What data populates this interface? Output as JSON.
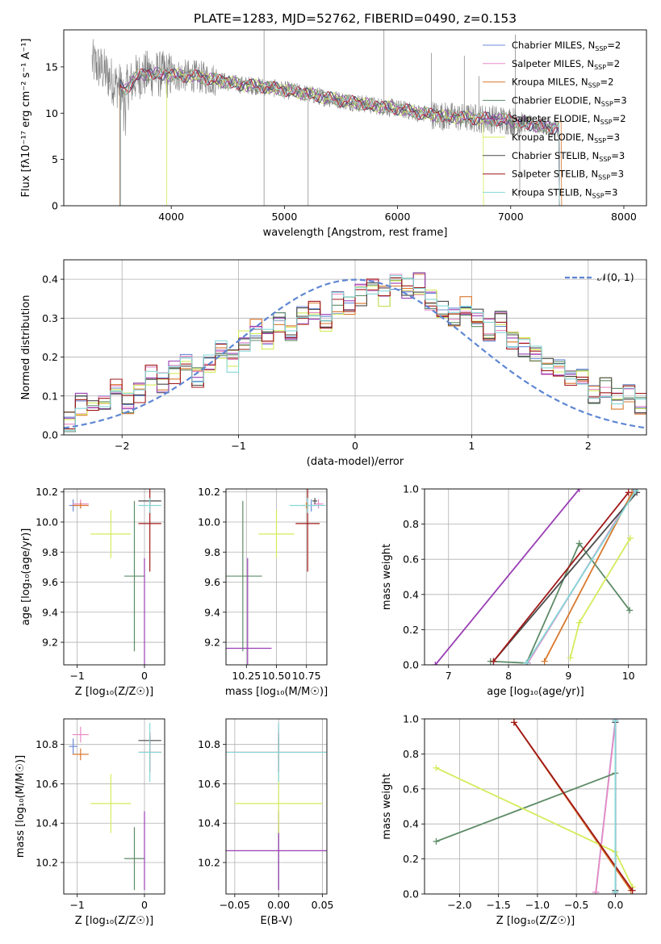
{
  "figure": {
    "title": "PLATE=1283, MJD=52762, FIBERID=0490, z=0.153",
    "models": [
      {
        "name": "Chabrier MILES",
        "nssp": "2",
        "color": "#6b8bd6"
      },
      {
        "name": "Salpeter MILES",
        "nssp": "2",
        "color": "#e98bc6"
      },
      {
        "name": "Kroupa MILES",
        "nssp": "2",
        "color": "#d9782d"
      },
      {
        "name": "Chabrier ELODIE",
        "nssp": "3",
        "color": "#5e8c68"
      },
      {
        "name": "Salpeter ELODIE",
        "nssp": "2",
        "color": "#9a3fb4"
      },
      {
        "name": "Kroupa ELODIE",
        "nssp": "3",
        "color": "#d4ec5c"
      },
      {
        "name": "Chabrier STELIB",
        "nssp": "3",
        "color": "#4a4a4a"
      },
      {
        "name": "Salpeter STELIB",
        "nssp": "3",
        "color": "#a01818"
      },
      {
        "name": "Kroupa STELIB",
        "nssp": "3",
        "color": "#86d8d8"
      }
    ]
  },
  "chart_data": [
    {
      "id": "spectrum",
      "type": "line",
      "xlabel": "wavelength [Angstrom, rest frame]",
      "ylabel": "Flux [fλ10⁻¹⁷ erg cm⁻² s⁻¹ A⁻¹]",
      "xlim": [
        3050,
        8200
      ],
      "ylim": [
        0,
        19
      ],
      "xticks": [
        "4000",
        "5000",
        "6000",
        "7000",
        "8000"
      ],
      "yticks": [
        "0",
        "5",
        "10",
        "15"
      ],
      "grid": false,
      "legend": "top-right",
      "data_color": "#7f7f7f",
      "continuum": {
        "x": [
          3300,
          3400,
          3500,
          3600,
          3700,
          3800,
          3900,
          4000,
          4200,
          4400,
          4600,
          4800,
          5000,
          5200,
          5400,
          5600,
          5800,
          6000,
          6200,
          6400,
          6600,
          6800,
          7000,
          7200,
          7400
        ],
        "y": [
          15.5,
          14.6,
          13.2,
          12.6,
          14.0,
          14.3,
          14.2,
          14.1,
          14.0,
          13.6,
          13.1,
          12.9,
          12.5,
          12.1,
          11.6,
          11.2,
          10.8,
          10.5,
          10.0,
          9.7,
          9.5,
          9.4,
          9.2,
          8.7,
          8.4
        ]
      },
      "spikes_up": [
        {
          "x": 4820,
          "y": 19
        },
        {
          "x": 5880,
          "y": 19
        },
        {
          "x": 6300,
          "y": 16.5
        },
        {
          "x": 6590,
          "y": 16.2
        },
        {
          "x": 7040,
          "y": 18.5
        },
        {
          "x": 6720,
          "y": 14.0
        }
      ],
      "spikes_down": [
        {
          "x": 4820,
          "y": 0
        },
        {
          "x": 5210,
          "y": 0
        },
        {
          "x": 7080,
          "y": 0.8
        }
      ],
      "model_cutoffs": [
        {
          "model": "Kroupa MILES",
          "x_start": 3545,
          "x_end": 7450
        },
        {
          "model": "Kroupa ELODIE",
          "x_start": 3960,
          "x_end": 6760
        }
      ]
    },
    {
      "id": "residuals",
      "type": "line",
      "xlabel": "(data-model)/error",
      "ylabel": "Normed distribution",
      "xlim": [
        -2.5,
        2.5
      ],
      "ylim": [
        0,
        0.45
      ],
      "xticks": [
        "−2",
        "−1",
        "0",
        "1",
        "2"
      ],
      "yticks": [
        "0.0",
        "0.1",
        "0.2",
        "0.3",
        "0.4"
      ],
      "grid": true,
      "legend": "top-right",
      "reference_label": "𝒩(0, 1)",
      "reference_color": "#5f87d3",
      "bins": {
        "start": -2.5,
        "width": 0.1,
        "count": 50
      },
      "base_hist": [
        0.03,
        0.08,
        0.06,
        0.09,
        0.12,
        0.08,
        0.11,
        0.15,
        0.13,
        0.16,
        0.19,
        0.15,
        0.18,
        0.22,
        0.19,
        0.24,
        0.27,
        0.25,
        0.29,
        0.27,
        0.3,
        0.32,
        0.29,
        0.34,
        0.33,
        0.36,
        0.38,
        0.36,
        0.4,
        0.38,
        0.39,
        0.35,
        0.33,
        0.31,
        0.33,
        0.3,
        0.27,
        0.29,
        0.25,
        0.23,
        0.21,
        0.17,
        0.18,
        0.14,
        0.15,
        0.11,
        0.12,
        0.09,
        0.1,
        0.08
      ]
    },
    {
      "id": "age-vs-z",
      "type": "scatter",
      "xlabel": "Z [log₁₀(Z/Z☉)]",
      "ylabel": "age  [log₁₀(age/yr)]",
      "xlim": [
        -1.2,
        0.3
      ],
      "ylim": [
        9.05,
        10.22
      ],
      "xticks": [
        "−1",
        "0"
      ],
      "yticks": [
        "9.2",
        "9.4",
        "9.6",
        "9.8",
        "10.0",
        "10.2"
      ],
      "grid": true
    },
    {
      "id": "age-vs-mass",
      "type": "scatter",
      "xlabel": "mass [log₁₀(M/M☉)]",
      "ylabel": "",
      "xlim": [
        10.08,
        10.92
      ],
      "ylim": [
        9.05,
        10.22
      ],
      "xticks": [
        "10.25",
        "10.50",
        "10.75"
      ],
      "yticks": [
        "9.2",
        "9.4",
        "9.6",
        "9.8",
        "10.0",
        "10.2"
      ],
      "grid": true
    },
    {
      "id": "weight-vs-age",
      "type": "line",
      "xlabel": "age  [log₁₀(age/yr)]",
      "ylabel": "mass weight",
      "xlim": [
        6.6,
        10.3
      ],
      "ylim": [
        0,
        1
      ],
      "xticks": [
        "7",
        "8",
        "9",
        "10"
      ],
      "yticks": [
        "0.0",
        "0.2",
        "0.4",
        "0.6",
        "0.8",
        "1.0"
      ],
      "grid": true,
      "series": [
        {
          "model": "Chabrier MILES",
          "x": [
            8.32,
            10.08
          ],
          "y": [
            0.01,
            0.98
          ]
        },
        {
          "model": "Salpeter MILES",
          "x": [
            8.32,
            10.1
          ],
          "y": [
            0.01,
            0.99
          ]
        },
        {
          "model": "Kroupa MILES",
          "x": [
            8.6,
            10.06
          ],
          "y": [
            0.02,
            0.98
          ]
        },
        {
          "model": "Chabrier ELODIE",
          "x": [
            7.7,
            8.3,
            9.18,
            10.02
          ],
          "y": [
            0.02,
            0.01,
            0.69,
            0.31
          ]
        },
        {
          "model": "Salpeter ELODIE",
          "x": [
            6.78,
            9.18
          ],
          "y": [
            0.0,
            1.0
          ]
        },
        {
          "model": "Kroupa ELODIE",
          "x": [
            9.03,
            9.18,
            10.03
          ],
          "y": [
            0.04,
            0.24,
            0.72
          ]
        },
        {
          "model": "Chabrier STELIB",
          "x": [
            7.75,
            10.14
          ],
          "y": [
            0.02,
            0.98
          ]
        },
        {
          "model": "Salpeter STELIB",
          "x": [
            7.75,
            10.0
          ],
          "y": [
            0.02,
            0.98
          ]
        },
        {
          "model": "Kroupa STELIB",
          "x": [
            8.3,
            10.12
          ],
          "y": [
            0.01,
            0.99
          ]
        }
      ]
    },
    {
      "id": "mass-vs-z",
      "type": "scatter",
      "xlabel": "Z [log₁₀(Z/Z☉)]",
      "ylabel": "mass [log₁₀(M/M☉)]",
      "xlim": [
        -1.2,
        0.3
      ],
      "ylim": [
        10.04,
        10.93
      ],
      "xticks": [
        "−1",
        "0"
      ],
      "yticks": [
        "10.2",
        "10.4",
        "10.6",
        "10.8"
      ],
      "grid": true
    },
    {
      "id": "mass-vs-ebv",
      "type": "scatter",
      "xlabel": "E(B-V)",
      "ylabel": "",
      "xlim": [
        -0.06,
        0.055
      ],
      "ylim": [
        10.04,
        10.93
      ],
      "xticks": [
        "−0.05",
        "0.00",
        "0.05"
      ],
      "yticks": [
        "10.2",
        "10.4",
        "10.6",
        "10.8"
      ],
      "grid": true
    },
    {
      "id": "weight-vs-z",
      "type": "line",
      "xlabel": "Z [log₁₀(Z/Z☉)]",
      "ylabel": "mass weight",
      "xlim": [
        -2.45,
        0.4
      ],
      "ylim": [
        0,
        1
      ],
      "xticks": [
        "−2.0",
        "−1.5",
        "−1.0",
        "−0.5",
        "0.0"
      ],
      "yticks": [
        "0.0",
        "0.2",
        "0.4",
        "0.6",
        "0.8",
        "1.0"
      ],
      "grid": true,
      "series": [
        {
          "model": "Chabrier MILES",
          "x": [
            -0.25,
            0.0
          ],
          "y": [
            0.01,
            0.99
          ]
        },
        {
          "model": "Salpeter MILES",
          "x": [
            -0.25,
            0.0
          ],
          "y": [
            0.01,
            0.98
          ]
        },
        {
          "model": "Kroupa MILES",
          "x": [
            -1.3,
            0.2
          ],
          "y": [
            0.98,
            0.02
          ]
        },
        {
          "model": "Chabrier ELODIE",
          "x": [
            -2.3,
            0.0,
            0.0
          ],
          "y": [
            0.3,
            0.69,
            0.01
          ]
        },
        {
          "model": "Salpeter ELODIE",
          "x": [
            0.0,
            0.0
          ],
          "y": [
            0.0,
            1.0
          ]
        },
        {
          "model": "Kroupa ELODIE",
          "x": [
            -2.3,
            0.0,
            0.22
          ],
          "y": [
            0.72,
            0.24,
            0.04
          ]
        },
        {
          "model": "Chabrier STELIB",
          "x": [
            0.0,
            0.0
          ],
          "y": [
            0.02,
            0.98
          ]
        },
        {
          "model": "Salpeter STELIB",
          "x": [
            -1.3,
            0.22
          ],
          "y": [
            0.98,
            0.02
          ]
        },
        {
          "model": "Kroupa STELIB",
          "x": [
            0.0,
            0.0
          ],
          "y": [
            0.01,
            0.99
          ]
        }
      ]
    }
  ],
  "fits": [
    {
      "model": "Chabrier MILES",
      "z": -1.06,
      "z_err": 0.06,
      "age": 10.11,
      "age_err": 0.04,
      "mass": 10.79,
      "mass_err": 0.04,
      "ebv": 0.0,
      "ebv_err": 0.0
    },
    {
      "model": "Salpeter MILES",
      "z": -0.95,
      "z_err": 0.12,
      "age": 10.12,
      "age_err": 0.03,
      "mass": 10.85,
      "mass_err": 0.04,
      "ebv": 0.0,
      "ebv_err": 0.0
    },
    {
      "model": "Kroupa MILES",
      "z": -0.95,
      "z_err": 0.12,
      "age": 10.11,
      "age_err": 0.02,
      "mass": 10.75,
      "mass_err": 0.03,
      "ebv": 0.0,
      "ebv_err": 0.0
    },
    {
      "model": "Chabrier ELODIE",
      "z": -0.15,
      "z_err": 0.15,
      "age": 9.64,
      "age_err": 0.5,
      "mass": 10.22,
      "mass_err": 0.16,
      "ebv": 0.0,
      "ebv_err": 0.0
    },
    {
      "model": "Salpeter ELODIE",
      "z": 0.0,
      "z_err": 0.0,
      "age": 9.16,
      "age_err": 0.6,
      "mass": 10.26,
      "mass_err": 0.2,
      "ebv": 0.0,
      "ebv_err": 0.12
    },
    {
      "model": "Kroupa ELODIE",
      "z": -0.5,
      "z_err": 0.3,
      "age": 9.92,
      "age_err": 0.16,
      "mass": 10.5,
      "mass_err": 0.15,
      "ebv": 0.0,
      "ebv_err": 0.05
    },
    {
      "model": "Chabrier STELIB",
      "z": 0.08,
      "z_err": 0.17,
      "age": 10.14,
      "age_err": 0.02,
      "mass": 10.82,
      "mass_err": 0.02,
      "ebv": 0.0,
      "ebv_err": 0.0
    },
    {
      "model": "Salpeter STELIB",
      "z": 0.08,
      "z_err": 0.17,
      "age": 9.99,
      "age_err": 0.32,
      "mass": 10.76,
      "mass_err": 0.1,
      "ebv": 0.0,
      "ebv_err": 0.1
    },
    {
      "model": "Kroupa STELIB",
      "z": 0.08,
      "z_err": 0.17,
      "age": 10.11,
      "age_err": 0.05,
      "mass": 10.76,
      "mass_err": 0.15,
      "ebv": 0.0,
      "ebv_err": 0.07
    }
  ]
}
